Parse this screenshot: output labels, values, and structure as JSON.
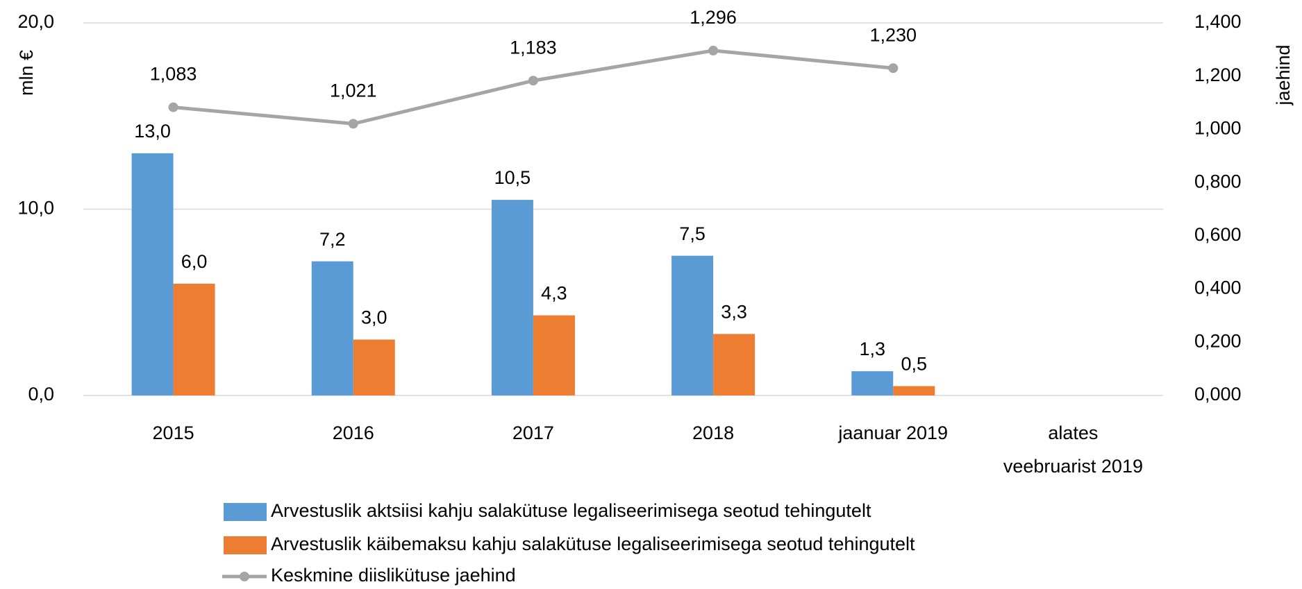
{
  "chart_data": {
    "type": "bar",
    "y_axis_label": "mln €",
    "y2_axis_label": "jaehind",
    "categories": [
      "2015",
      "2016",
      "2017",
      "2018",
      "jaanuar 2019",
      "alates veebruarist 2019"
    ],
    "series": [
      {
        "name": "Arvestuslik aktsiisi kahju salakütuse legaliseerimisega seotud tehingutelt",
        "color": "#5b9bd5",
        "type": "bar",
        "values": [
          13.0,
          7.2,
          10.5,
          7.5,
          1.3,
          null
        ],
        "value_labels": [
          "13,0",
          "7,2",
          "10,5",
          "7,5",
          "1,3",
          null
        ]
      },
      {
        "name": "Arvestuslik käibemaksu kahju salakütuse legaliseerimisega seotud tehingutelt",
        "color": "#ed7d31",
        "type": "bar",
        "values": [
          6.0,
          3.0,
          4.3,
          3.3,
          0.5,
          null
        ],
        "value_labels": [
          "6,0",
          "3,0",
          "4,3",
          "3,3",
          "0,5",
          null
        ]
      },
      {
        "name": "Keskmine diislikütuse jaehind",
        "color": "#a5a5a5",
        "type": "line",
        "axis": "y2",
        "values": [
          1.083,
          1.021,
          1.183,
          1.296,
          1.23,
          null
        ],
        "value_labels": [
          "1,083",
          "1,021",
          "1,183",
          "1,296",
          "1,230",
          null
        ]
      }
    ],
    "ylim": [
      0,
      20
    ],
    "yticks": [
      {
        "value": 0,
        "label": "0,0"
      },
      {
        "value": 10,
        "label": "10,0"
      },
      {
        "value": 20,
        "label": "20,0"
      }
    ],
    "y2lim": [
      0,
      1.4
    ],
    "y2ticks": [
      {
        "value": 0,
        "label": "0,000"
      },
      {
        "value": 0.2,
        "label": "0,200"
      },
      {
        "value": 0.4,
        "label": "0,400"
      },
      {
        "value": 0.6,
        "label": "0,600"
      },
      {
        "value": 0.8,
        "label": "0,800"
      },
      {
        "value": 1.0,
        "label": "1,000"
      },
      {
        "value": 1.2,
        "label": "1,200"
      },
      {
        "value": 1.4,
        "label": "1,400"
      }
    ],
    "grid": true,
    "legend": "bottom"
  }
}
